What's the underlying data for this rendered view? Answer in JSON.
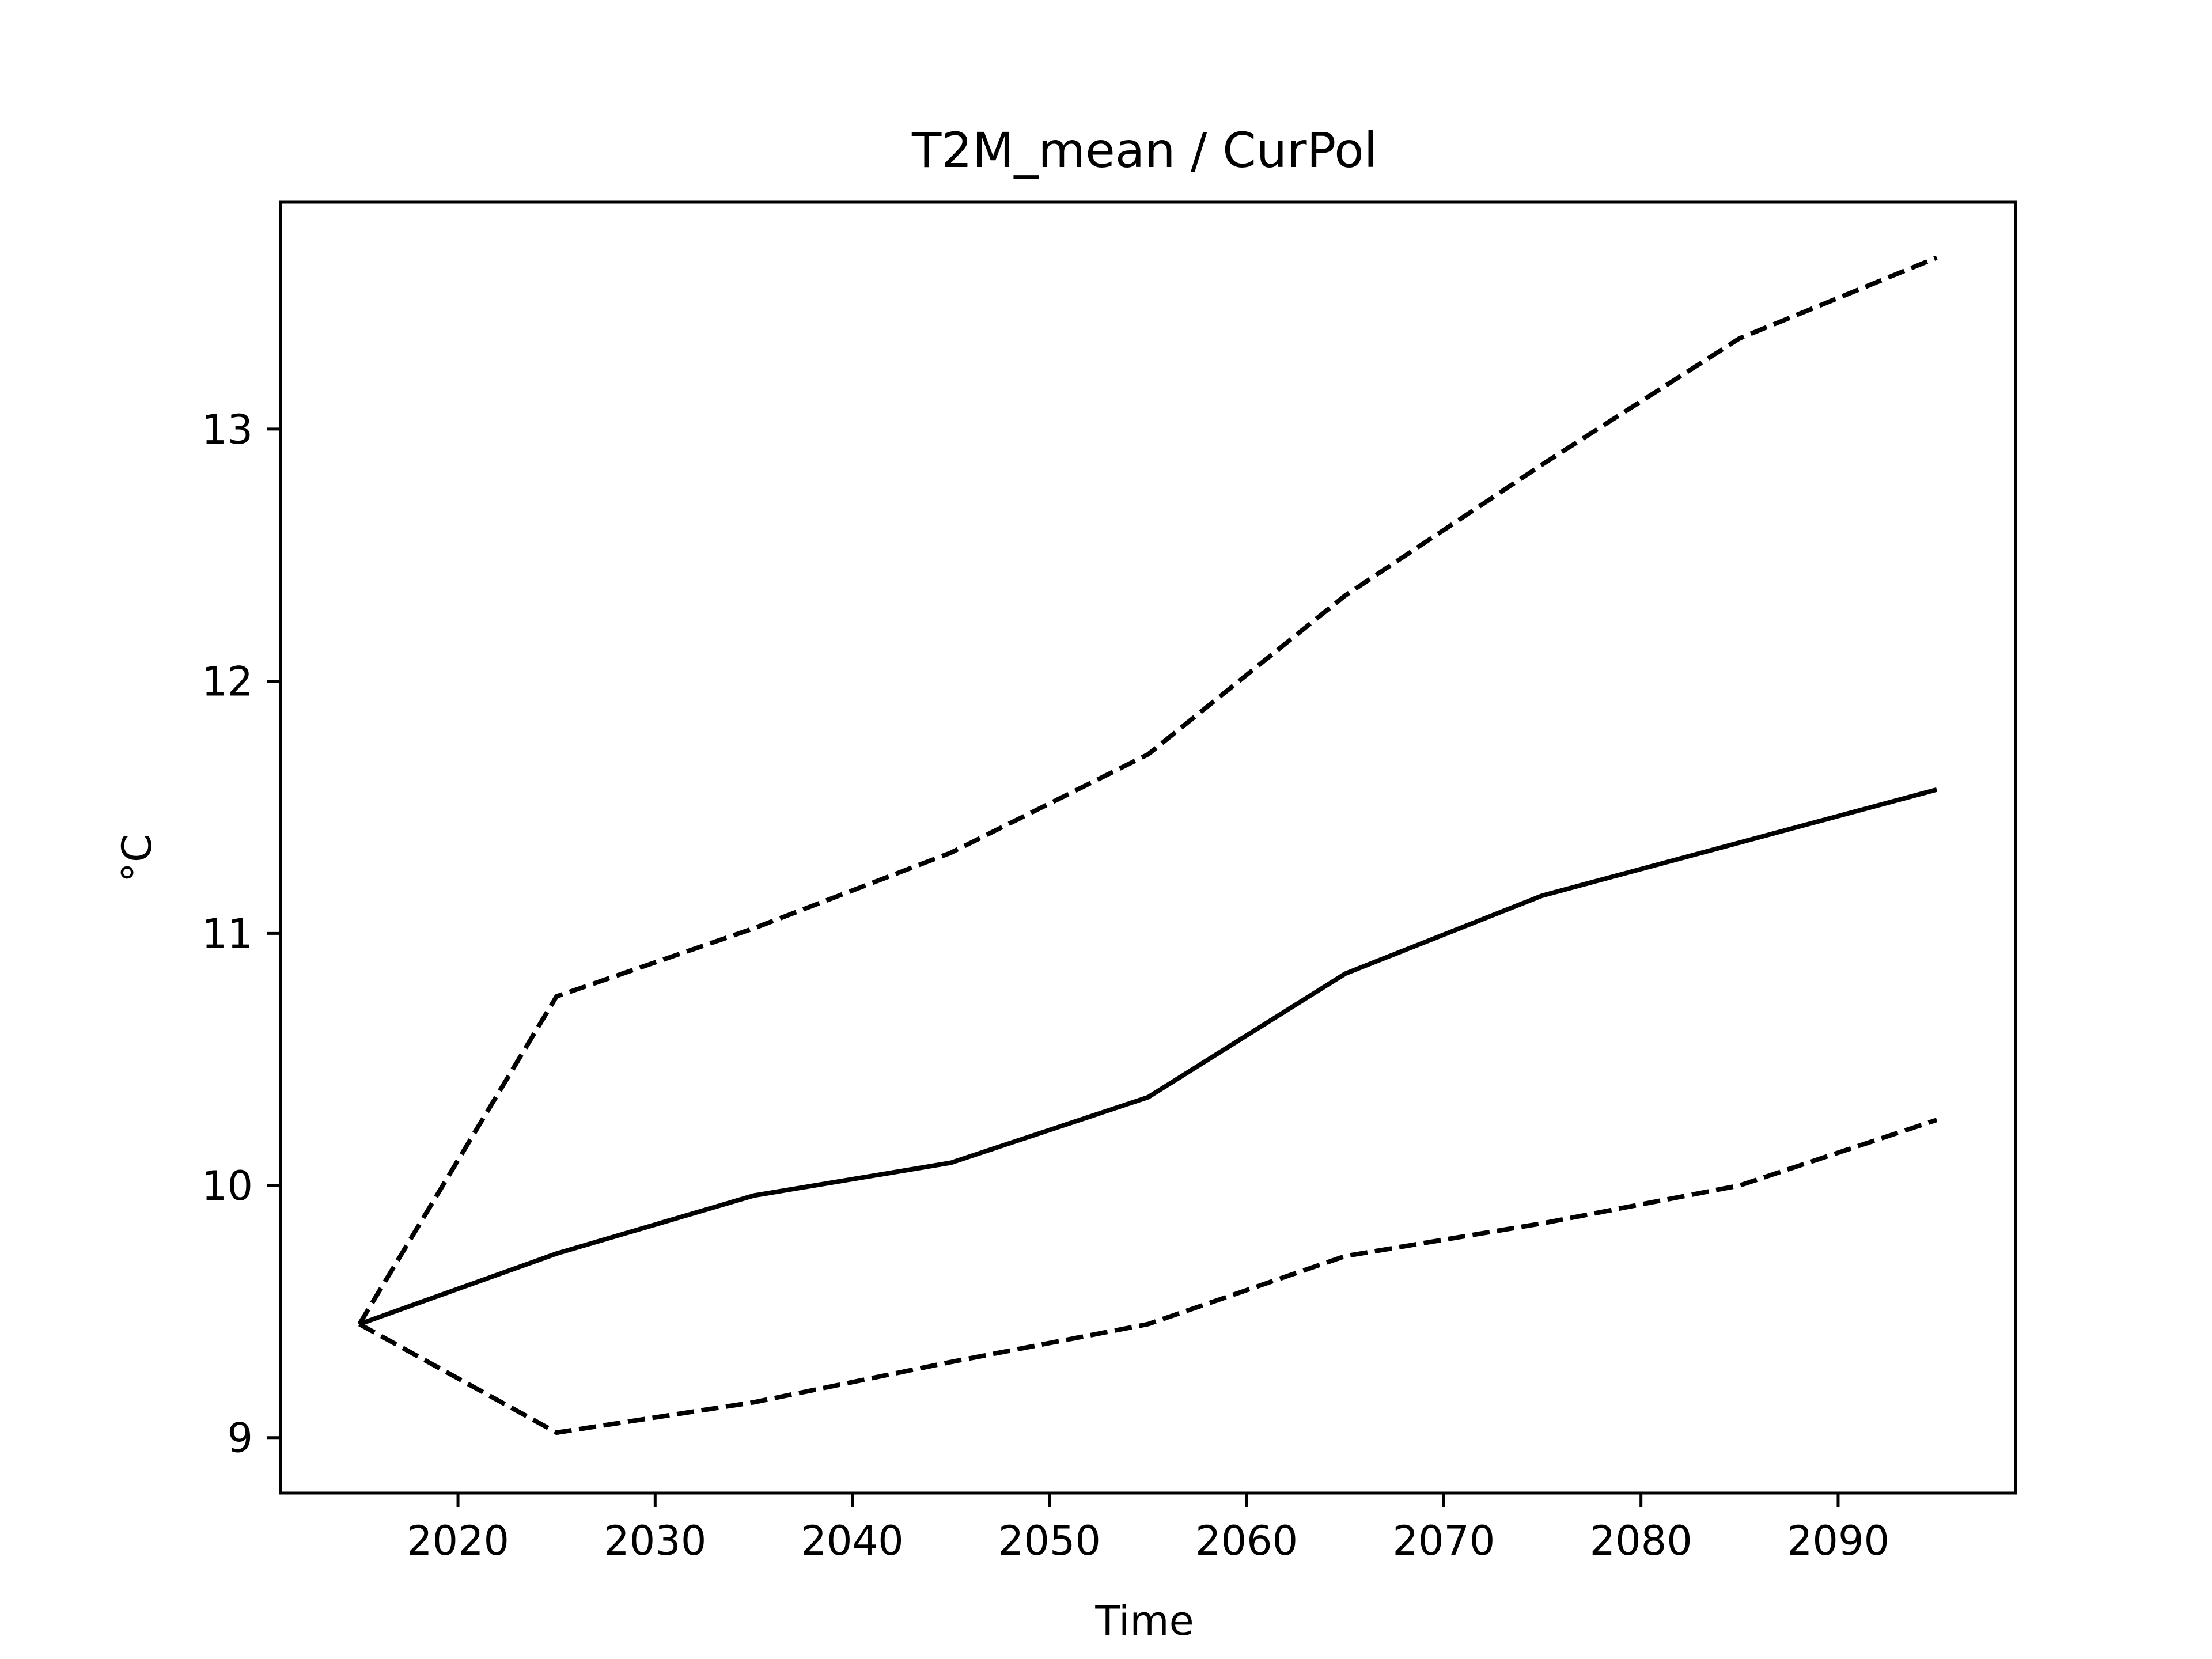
{
  "chart_data": {
    "type": "line",
    "title": "T2M_mean / CurPol",
    "xlabel": "Time",
    "ylabel": "°C",
    "xlim": [
      2011,
      2099
    ],
    "ylim": [
      8.78,
      13.9
    ],
    "xticks": [
      2020,
      2030,
      2040,
      2050,
      2060,
      2070,
      2080,
      2090
    ],
    "yticks": [
      9,
      10,
      11,
      12,
      13
    ],
    "grid": false,
    "legend": "none",
    "x": [
      2015,
      2025,
      2035,
      2045,
      2055,
      2065,
      2075,
      2085,
      2095
    ],
    "series": [
      {
        "style": "solid",
        "color": "#000000",
        "values": [
          9.45,
          9.73,
          9.96,
          10.09,
          10.35,
          10.84,
          11.15,
          11.36,
          11.57
        ]
      },
      {
        "style": "dashed",
        "color": "#000000",
        "values": [
          9.45,
          10.75,
          11.02,
          11.32,
          11.71,
          12.34,
          12.86,
          13.36,
          13.68
        ]
      },
      {
        "style": "dashed",
        "color": "#000000",
        "values": [
          9.45,
          9.02,
          9.14,
          9.3,
          9.45,
          9.72,
          9.85,
          10.0,
          10.26
        ]
      }
    ]
  }
}
